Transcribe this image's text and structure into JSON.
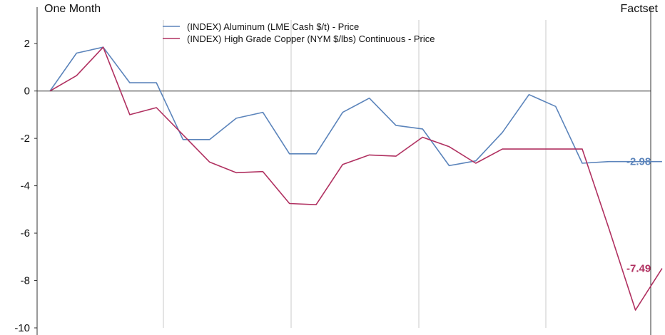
{
  "header": {
    "period": "One Month",
    "source": "Factset"
  },
  "colors": {
    "aluminum": "#5b84bb",
    "copper": "#b03060",
    "axis": "#333333",
    "grid": "#c8c8c8"
  },
  "chart_data": {
    "type": "line",
    "ylim": [
      -10,
      3
    ],
    "yticks": [
      -10,
      -8,
      -6,
      -4,
      -2,
      0,
      2
    ],
    "grid": "vertical",
    "legend_position": "top-center",
    "x": [
      0,
      1,
      2,
      3,
      4,
      5,
      6,
      7,
      8,
      9,
      10,
      11,
      12,
      13,
      14,
      15,
      16,
      17,
      18,
      19,
      20,
      21,
      22,
      23
    ],
    "series": [
      {
        "name": "(INDEX) Aluminum (LME Cash $/t) - Price",
        "color": "#5b84bb",
        "values": [
          0,
          1.6,
          1.85,
          0.35,
          0.35,
          -2.05,
          -2.05,
          -1.15,
          -0.9,
          -2.65,
          -2.65,
          -0.9,
          -0.3,
          -1.45,
          -1.6,
          -3.15,
          -2.95,
          -1.75,
          -0.15,
          -0.65,
          -3.05,
          -2.98,
          -2.98,
          -2.98
        ],
        "end_label": "-2.98"
      },
      {
        "name": "(INDEX) High Grade Copper (NYM $/lbs) Continuous - Price",
        "color": "#b03060",
        "values": [
          0,
          0.65,
          1.85,
          -1.0,
          -0.7,
          -1.85,
          -3.0,
          -3.45,
          -3.4,
          -4.75,
          -4.8,
          -3.1,
          -2.7,
          -2.75,
          -1.95,
          -2.35,
          -3.05,
          -2.45,
          -2.45,
          -2.45,
          -2.45,
          -5.8,
          -9.25,
          -7.49
        ],
        "end_label": "-7.49"
      }
    ]
  }
}
